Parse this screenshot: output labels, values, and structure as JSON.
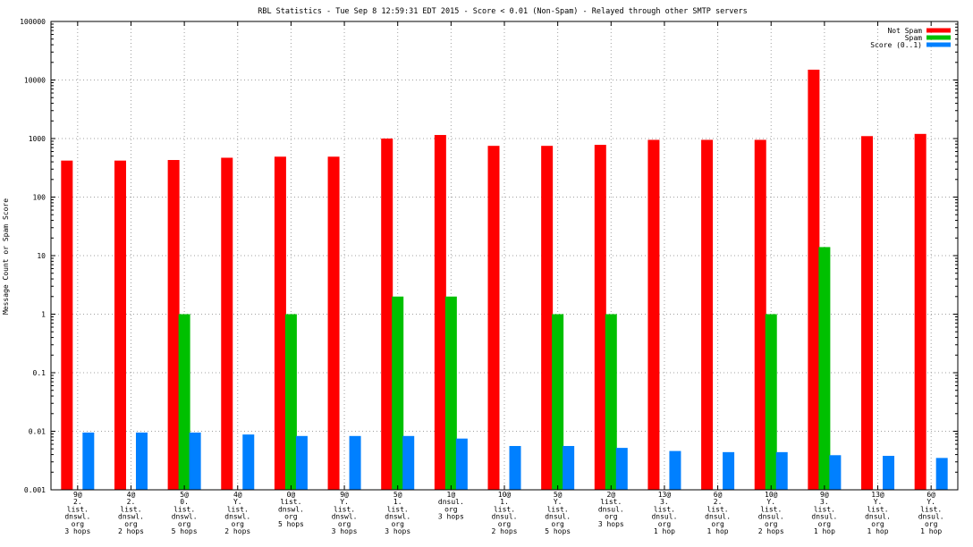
{
  "chart_data": {
    "type": "bar",
    "title": "RBL Statistics - Tue Sep  8 12:59:31 EDT 2015 - Score < 0.01 (Non-Spam) - Relayed through other SMTP servers",
    "ylabel": "Message Count or Spam Score",
    "xlabel": "",
    "yscale": "log",
    "ylim": [
      0.001,
      100000
    ],
    "yticks": [
      "0.001",
      "0.01",
      "0.1",
      "1",
      "10",
      "100",
      "1000",
      "10000",
      "100000"
    ],
    "grid": true,
    "legend_position": "top-right",
    "categories": [
      [
        "9@",
        "2.",
        "list.",
        "dnswl.",
        "org",
        "3 hops"
      ],
      [
        "4@",
        "2.",
        "list.",
        "dnswl.",
        "org",
        "2 hops"
      ],
      [
        "5@",
        "0.",
        "list.",
        "dnswl.",
        "org",
        "5 hops"
      ],
      [
        "4@",
        "Y.",
        "list.",
        "dnswl.",
        "org",
        "2 hops"
      ],
      [
        "0@",
        "list.",
        "dnswl.",
        "org",
        "5 hops"
      ],
      [
        "9@",
        "Y.",
        "list.",
        "dnswl.",
        "org",
        "3 hops"
      ],
      [
        "5@",
        "1.",
        "list.",
        "dnswl.",
        "org",
        "3 hops"
      ],
      [
        "1@",
        "dnsul.",
        "org",
        "3 hops"
      ],
      [
        "10@",
        "1.",
        "list.",
        "dnsul.",
        "org",
        "2 hops"
      ],
      [
        "5@",
        "Y.",
        "list.",
        "dnsul.",
        "org",
        "5 hops"
      ],
      [
        "2@",
        "list.",
        "dnsul.",
        "org",
        "3 hops"
      ],
      [
        "13@",
        "3.",
        "list.",
        "dnsul.",
        "org",
        "1 hop"
      ],
      [
        "6@",
        "2.",
        "list.",
        "dnsul.",
        "org",
        "1 hop"
      ],
      [
        "10@",
        "Y.",
        "list.",
        "dnsul.",
        "org",
        "2 hops"
      ],
      [
        "9@",
        "3.",
        "list.",
        "dnsul.",
        "org",
        "1 hop"
      ],
      [
        "13@",
        "Y.",
        "list.",
        "dnsul.",
        "org",
        "1 hop"
      ],
      [
        "6@",
        "Y.",
        "list.",
        "dnsul.",
        "org",
        "1 hop"
      ]
    ],
    "series": [
      {
        "name": "Not Spam",
        "color": "#ff0000",
        "values": [
          420,
          420,
          430,
          470,
          490,
          490,
          1000,
          1150,
          750,
          750,
          780,
          950,
          950,
          950,
          15000,
          1100,
          1200
        ]
      },
      {
        "name": "Spam",
        "color": "#00c000",
        "values": [
          null,
          null,
          1,
          null,
          1,
          null,
          2,
          2,
          null,
          1,
          1,
          null,
          null,
          1,
          14,
          null,
          null
        ]
      },
      {
        "name": "Score (0..1)",
        "color": "#0080ff",
        "values": [
          0.0095,
          0.0095,
          0.0095,
          0.0088,
          0.0083,
          0.0083,
          0.0083,
          0.0075,
          0.0056,
          0.0056,
          0.0052,
          0.0046,
          0.0044,
          0.0044,
          0.0039,
          0.0038,
          0.0035
        ]
      }
    ]
  }
}
